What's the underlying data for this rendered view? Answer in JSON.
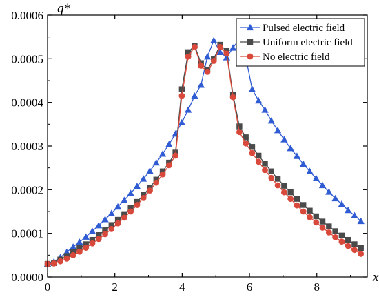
{
  "chart_data": {
    "type": "line",
    "title": "",
    "xlabel": "x",
    "ylabel": "q*",
    "xlim": [
      0,
      9.5
    ],
    "ylim": [
      0,
      0.0006
    ],
    "xticks": [
      0,
      2,
      4,
      6,
      8
    ],
    "yticks": [
      0.0,
      0.0001,
      0.0002,
      0.0003,
      0.0004,
      0.0005,
      0.0006
    ],
    "xtick_labels": [
      "0",
      "2",
      "4",
      "6",
      "8"
    ],
    "ytick_labels": [
      "0.0000",
      "0.0001",
      "0.0002",
      "0.0003",
      "0.0004",
      "0.0005",
      "0.0006"
    ],
    "grid": false,
    "legend_position": "top-right",
    "series": [
      {
        "name": "Pulsed electric field",
        "color": "#2f5bd3",
        "marker": "triangle",
        "x": [
          0,
          0.19,
          0.38,
          0.57,
          0.76,
          0.95,
          1.14,
          1.33,
          1.52,
          1.71,
          1.9,
          2.09,
          2.28,
          2.47,
          2.66,
          2.85,
          3.04,
          3.23,
          3.42,
          3.61,
          3.8,
          3.99,
          4.18,
          4.37,
          4.56,
          4.75,
          4.94,
          5.13,
          5.32,
          5.51,
          5.7,
          5.89,
          6.08,
          6.27,
          6.46,
          6.65,
          6.84,
          7.03,
          7.22,
          7.41,
          7.6,
          7.79,
          7.98,
          8.17,
          8.36,
          8.55,
          8.74,
          8.93,
          9.12,
          9.31
        ],
        "y": [
          3e-05,
          3.5e-05,
          4.5e-05,
          5.7e-05,
          6.9e-05,
          8e-05,
          9.2e-05,
          0.000105,
          0.000118,
          0.000132,
          0.000146,
          0.000161,
          0.000176,
          0.000192,
          0.000208,
          0.000225,
          0.000243,
          0.000262,
          0.000282,
          0.000304,
          0.000328,
          0.000354,
          0.000383,
          0.000415,
          0.00044,
          0.000505,
          0.000542,
          0.000515,
          0.000503,
          0.000525,
          0.000545,
          0.000504,
          0.00043,
          0.000404,
          0.000383,
          0.000358,
          0.000336,
          0.000315,
          0.000295,
          0.000277,
          0.000259,
          0.000242,
          0.000226,
          0.00021,
          0.000195,
          0.00018,
          0.000167,
          0.000153,
          0.000141,
          0.000128
        ],
        "comment": ""
      },
      {
        "name": "Uniform electric field",
        "color": "#4a4a4a",
        "marker": "square",
        "x": [
          0,
          0.19,
          0.38,
          0.57,
          0.76,
          0.95,
          1.14,
          1.33,
          1.52,
          1.71,
          1.9,
          2.09,
          2.28,
          2.47,
          2.66,
          2.85,
          3.04,
          3.23,
          3.42,
          3.61,
          3.8,
          3.99,
          4.18,
          4.37,
          4.56,
          4.75,
          4.94,
          5.13,
          5.32,
          5.51,
          5.7,
          5.89,
          6.08,
          6.27,
          6.46,
          6.65,
          6.84,
          7.03,
          7.22,
          7.41,
          7.6,
          7.79,
          7.98,
          8.17,
          8.36,
          8.55,
          8.74,
          8.93,
          9.12,
          9.31
        ],
        "y": [
          3e-05,
          3.2e-05,
          4e-05,
          4.8e-05,
          5.7e-05,
          6.6e-05,
          7.5e-05,
          8.5e-05,
          9.6e-05,
          0.000107,
          0.000119,
          0.000131,
          0.000144,
          0.000158,
          0.000172,
          0.000188,
          0.000205,
          0.000223,
          0.000242,
          0.000262,
          0.000285,
          0.00043,
          0.000515,
          0.00053,
          0.00049,
          0.000475,
          0.0005,
          0.000532,
          0.000518,
          0.000418,
          0.000345,
          0.00032,
          0.000298,
          0.000278,
          0.00026,
          0.000242,
          0.000225,
          0.000209,
          0.000194,
          0.000179,
          0.000165,
          0.000152,
          0.000139,
          0.000127,
          0.000116,
          0.000105,
          9.5e-05,
          8.5e-05,
          7.5e-05,
          6.6e-05
        ],
        "comment": ""
      },
      {
        "name": "No electric field",
        "color": "#d9493b",
        "marker": "circle",
        "x": [
          0,
          0.19,
          0.38,
          0.57,
          0.76,
          0.95,
          1.14,
          1.33,
          1.52,
          1.71,
          1.9,
          2.09,
          2.28,
          2.47,
          2.66,
          2.85,
          3.04,
          3.23,
          3.42,
          3.61,
          3.8,
          3.99,
          4.18,
          4.37,
          4.56,
          4.75,
          4.94,
          5.13,
          5.32,
          5.51,
          5.7,
          5.89,
          6.08,
          6.27,
          6.46,
          6.65,
          6.84,
          7.03,
          7.22,
          7.41,
          7.6,
          7.79,
          7.98,
          8.17,
          8.36,
          8.55,
          8.74,
          8.93,
          9.12,
          9.31
        ],
        "y": [
          3e-05,
          3.1e-05,
          3.6e-05,
          4.2e-05,
          5e-05,
          5.8e-05,
          6.7e-05,
          7.7e-05,
          8.7e-05,
          9.8e-05,
          0.00011,
          0.000123,
          0.000136,
          0.00015,
          0.000165,
          0.000181,
          0.000198,
          0.000216,
          0.000235,
          0.000256,
          0.000278,
          0.000415,
          0.000505,
          0.000527,
          0.000484,
          0.00047,
          0.000495,
          0.000527,
          0.000512,
          0.000412,
          0.000332,
          0.000306,
          0.000284,
          0.000264,
          0.000245,
          0.000227,
          0.00021,
          0.000194,
          0.000179,
          0.000164,
          0.00015,
          0.000137,
          0.000125,
          0.000113,
          0.000102,
          9.1e-05,
          8.1e-05,
          7.1e-05,
          6.2e-05,
          5.3e-05
        ],
        "comment": ""
      }
    ]
  }
}
